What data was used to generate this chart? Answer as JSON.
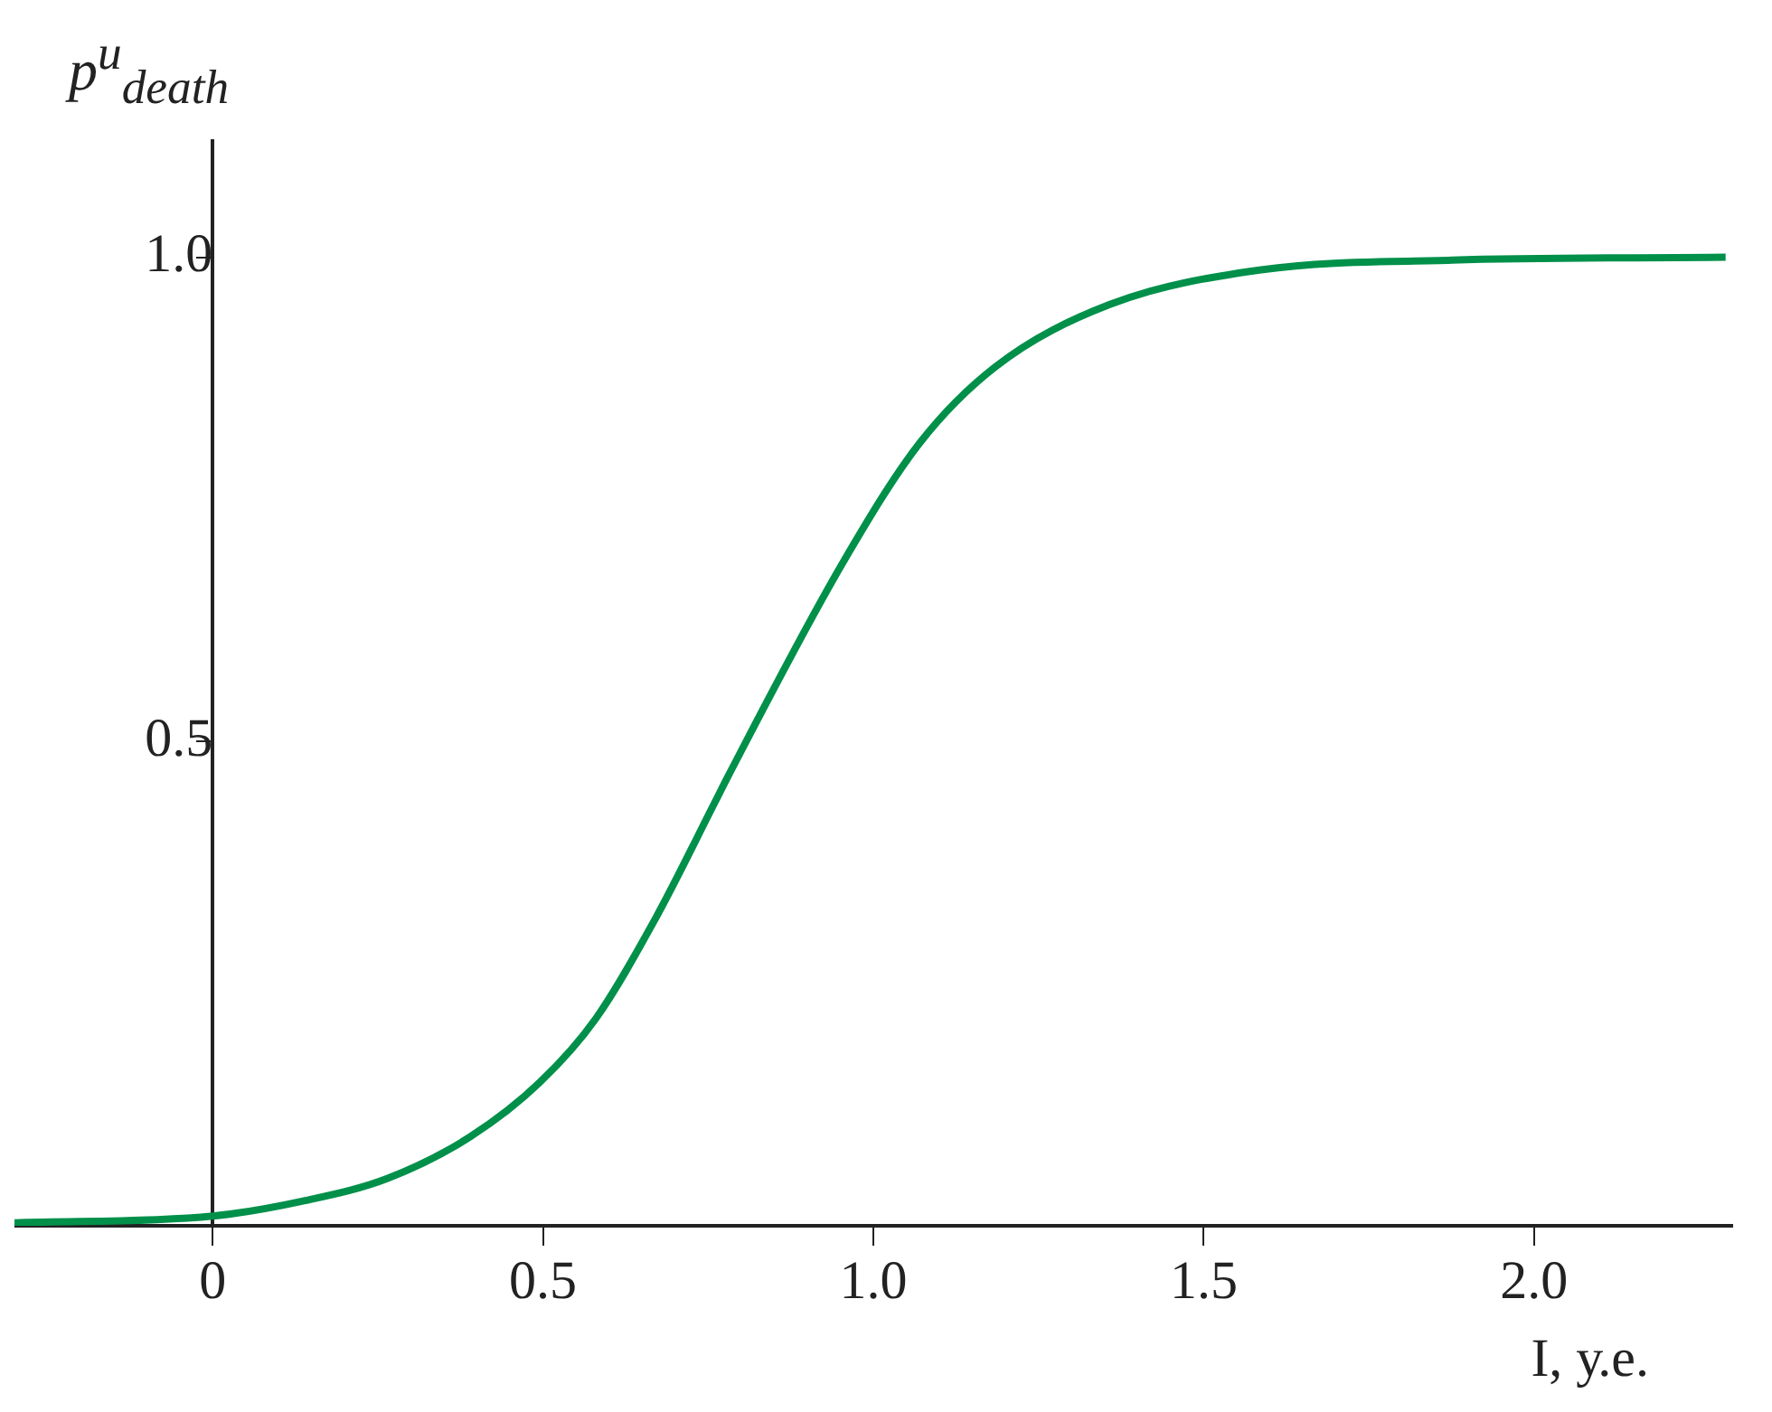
{
  "chart_data": {
    "type": "line",
    "xlabel": "I, у.е.",
    "ylabel": "p$^{u}$$_{death}$",
    "x": [
      -0.3,
      0,
      0.14,
      0.265,
      0.39,
      0.495,
      0.58,
      0.67,
      0.76,
      0.78,
      0.955,
      1.07,
      1.185,
      1.357,
      1.587,
      1.876,
      2.29
    ],
    "series": [
      {
        "color": "#00904a",
        "values": [
          0.003,
          0.01,
          0.026,
          0.049,
          0.092,
          0.148,
          0.214,
          0.317,
          0.437,
          0.464,
          0.686,
          0.808,
          0.887,
          0.951,
          0.987,
          0.997,
          1.0
        ]
      }
    ],
    "xlim": [
      -0.3,
      2.3
    ],
    "ylim": [
      0,
      1.12
    ],
    "xticks": [
      0,
      0.5,
      {
        "value": 1,
        "label": "1.0"
      },
      1.5,
      {
        "value": 2,
        "label": "2.0"
      }
    ],
    "yticks": [
      0.5,
      {
        "value": 1,
        "label": "1.0"
      }
    ],
    "grid": false,
    "legend": false,
    "marker": "none",
    "line_style": "solid"
  }
}
